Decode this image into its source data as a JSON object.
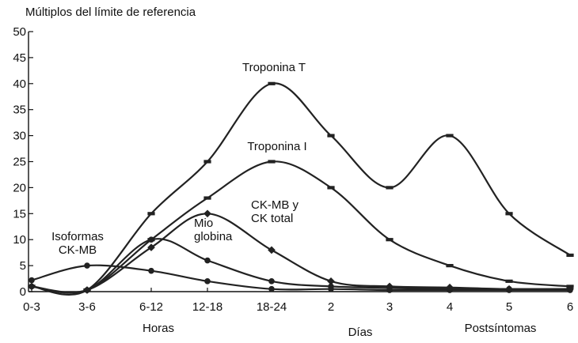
{
  "chart_data": {
    "type": "line",
    "title": "Múltiplos del límite de referencia",
    "xlabel": "",
    "ylabel": "",
    "ylim": [
      0,
      50
    ],
    "yticks": [
      0,
      5,
      10,
      15,
      20,
      25,
      30,
      35,
      40,
      45,
      50
    ],
    "categories": [
      "0-3",
      "3-6",
      "6-12",
      "12-18",
      "18-24",
      "2",
      "3",
      "4",
      "5",
      "6"
    ],
    "x_groups": [
      "Horas",
      "Días",
      "Postsíntomas"
    ],
    "grid": false,
    "series": [
      {
        "name": "Troponina T",
        "label": "Troponina T",
        "marker": "dash",
        "points": [
          [
            0,
            1
          ],
          [
            1,
            0.3
          ],
          [
            2,
            15
          ],
          [
            3,
            25
          ],
          [
            4,
            40
          ],
          [
            5,
            30
          ],
          [
            6,
            20
          ],
          [
            7,
            30
          ],
          [
            8,
            15
          ],
          [
            9,
            7
          ]
        ]
      },
      {
        "name": "Troponina I",
        "label": "Troponina I",
        "marker": "dash",
        "points": [
          [
            0,
            1
          ],
          [
            1,
            0.3
          ],
          [
            2,
            10
          ],
          [
            3,
            18
          ],
          [
            4,
            25
          ],
          [
            5,
            20
          ],
          [
            6,
            10
          ],
          [
            7,
            5
          ],
          [
            8,
            2
          ],
          [
            9,
            1
          ]
        ]
      },
      {
        "name": "CK-MB y CK total",
        "label": "CK-MB y\nCK total",
        "marker": "diamond",
        "points": [
          [
            0,
            1
          ],
          [
            1,
            0.3
          ],
          [
            2,
            8.5
          ],
          [
            3,
            15
          ],
          [
            4,
            8
          ],
          [
            5,
            2
          ],
          [
            6,
            1
          ],
          [
            7,
            0.8
          ],
          [
            8,
            0.5
          ],
          [
            9,
            0.5
          ]
        ]
      },
      {
        "name": "Mioglobina",
        "label": "Mio\nglobina",
        "marker": "dot",
        "points": [
          [
            0,
            1
          ],
          [
            1,
            0.3
          ],
          [
            2,
            10
          ],
          [
            3,
            6
          ],
          [
            4,
            2
          ],
          [
            5,
            1
          ],
          [
            6,
            0.7
          ],
          [
            7,
            0.5
          ],
          [
            8,
            0.5
          ],
          [
            9,
            0.5
          ]
        ]
      },
      {
        "name": "Isoformas CK-MB",
        "label": "Isoformas\nCK-MB",
        "marker": "dot",
        "points": [
          [
            0,
            2.2
          ],
          [
            1,
            5
          ],
          [
            2,
            4
          ],
          [
            3,
            2
          ],
          [
            4,
            0.5
          ],
          [
            5,
            0.5
          ],
          [
            6,
            0.3
          ],
          [
            7,
            0.3
          ],
          [
            8,
            0.3
          ],
          [
            9,
            0.3
          ]
        ]
      }
    ]
  }
}
